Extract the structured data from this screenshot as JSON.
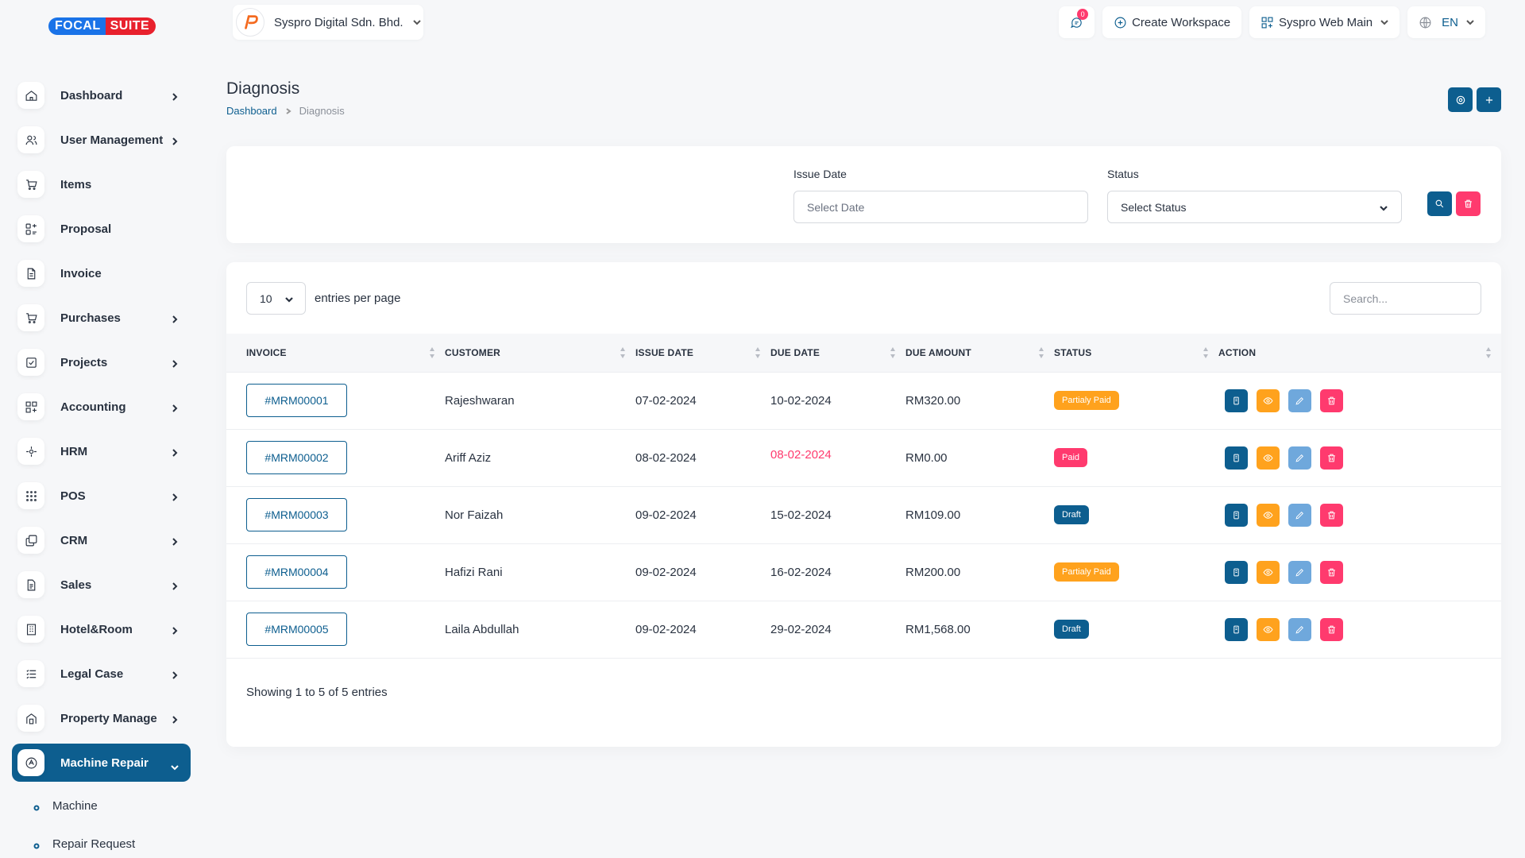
{
  "brand": {
    "part1": "FOCAL",
    "part2": "SUITE"
  },
  "topbar": {
    "company": "Syspro Digital Sdn. Bhd.",
    "messages_badge": "0",
    "create_workspace": "Create Workspace",
    "workspace": "Syspro Web Main",
    "language": "EN"
  },
  "sidebar": {
    "items": [
      {
        "label": "Dashboard",
        "icon": "home-icon",
        "chevron": true
      },
      {
        "label": "User Management",
        "icon": "users-icon",
        "chevron": true
      },
      {
        "label": "Items",
        "icon": "cart-icon",
        "chevron": false
      },
      {
        "label": "Proposal",
        "icon": "proposal-icon",
        "chevron": false
      },
      {
        "label": "Invoice",
        "icon": "file-icon",
        "chevron": false
      },
      {
        "label": "Purchases",
        "icon": "cart-icon",
        "chevron": true
      },
      {
        "label": "Projects",
        "icon": "check-square-icon",
        "chevron": true
      },
      {
        "label": "Accounting",
        "icon": "grid-plus-icon",
        "chevron": true
      },
      {
        "label": "HRM",
        "icon": "target-icon",
        "chevron": true
      },
      {
        "label": "POS",
        "icon": "dots-grid-icon",
        "chevron": true
      },
      {
        "label": "CRM",
        "icon": "layers-icon",
        "chevron": true
      },
      {
        "label": "Sales",
        "icon": "file-text-icon",
        "chevron": true
      },
      {
        "label": "Hotel&Room",
        "icon": "building-icon",
        "chevron": true
      },
      {
        "label": "Legal Case",
        "icon": "list-icon",
        "chevron": true
      },
      {
        "label": "Property Manage",
        "icon": "property-icon",
        "chevron": true
      },
      {
        "label": "Machine Repair",
        "icon": "tool-icon",
        "chevron": true,
        "active": true
      }
    ],
    "sub_items": [
      {
        "label": "Machine"
      },
      {
        "label": "Repair Request"
      }
    ]
  },
  "page": {
    "title": "Diagnosis",
    "breadcrumb": {
      "root": "Dashboard",
      "current": "Diagnosis"
    }
  },
  "filter": {
    "issue_date_label": "Issue Date",
    "issue_date_placeholder": "Select Date",
    "status_label": "Status",
    "status_value": "Select Status"
  },
  "table": {
    "entries_value": "10",
    "entries_label": "entries per page",
    "search_placeholder": "Search...",
    "columns": [
      "INVOICE",
      "CUSTOMER",
      "ISSUE DATE",
      "DUE DATE",
      "DUE AMOUNT",
      "STATUS",
      "ACTION"
    ],
    "rows": [
      {
        "invoice": "#MRM00001",
        "customer": "Rajeshwaran",
        "issue_date": "07-02-2024",
        "due_date": "10-02-2024",
        "due_overdue": false,
        "amount": "RM320.00",
        "status": "Partialy Paid",
        "status_color": "#ffa21d"
      },
      {
        "invoice": "#MRM00002",
        "customer": "Ariff Aziz",
        "issue_date": "08-02-2024",
        "due_date": "08-02-2024",
        "due_overdue": true,
        "amount": "RM0.00",
        "status": "Paid",
        "status_color": "#ff3a6e"
      },
      {
        "invoice": "#MRM00003",
        "customer": "Nor Faizah",
        "issue_date": "09-02-2024",
        "due_date": "15-02-2024",
        "due_overdue": false,
        "amount": "RM109.00",
        "status": "Draft",
        "status_color": "#0d5e8f"
      },
      {
        "invoice": "#MRM00004",
        "customer": "Hafizi Rani",
        "issue_date": "09-02-2024",
        "due_date": "16-02-2024",
        "due_overdue": false,
        "amount": "RM200.00",
        "status": "Partialy Paid",
        "status_color": "#ffa21d"
      },
      {
        "invoice": "#MRM00005",
        "customer": "Laila Abdullah",
        "issue_date": "09-02-2024",
        "due_date": "29-02-2024",
        "due_overdue": false,
        "amount": "RM1,568.00",
        "status": "Draft",
        "status_color": "#0d5e8f"
      }
    ],
    "footer": "Showing 1 to 5 of 5 entries"
  },
  "colors": {
    "primary": "#0d5e8f",
    "warning": "#ffa21d",
    "danger": "#ff3a6e",
    "info": "#6fa8dc",
    "overdue_text": "#ff3a6e"
  }
}
